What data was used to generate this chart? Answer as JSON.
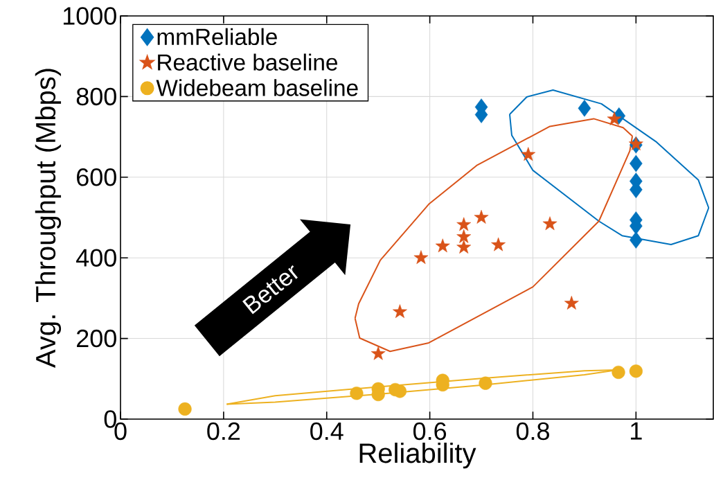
{
  "chart_data": {
    "type": "scatter",
    "xlabel": "Reliability",
    "ylabel": "Avg. Throughput (Mbps)",
    "xlim": [
      0,
      1.15
    ],
    "ylim": [
      0,
      1000
    ],
    "xticks": [
      0,
      0.2,
      0.4,
      0.6,
      0.8,
      1
    ],
    "yticks": [
      0,
      200,
      400,
      600,
      800,
      1000
    ],
    "grid": true,
    "legend": "top left",
    "annotations": [
      "Better"
    ],
    "series": [
      {
        "name": "mmReliable",
        "color": "#0072bd",
        "marker": "diamond",
        "x": [
          0.7,
          0.7,
          0.9,
          0.967,
          1,
          1,
          1,
          1,
          1,
          1,
          1
        ],
        "values": [
          774,
          755,
          771,
          752,
          680,
          634,
          590,
          569,
          494,
          479,
          444
        ]
      },
      {
        "name": "Reactive baseline",
        "color": "#d95319",
        "marker": "star",
        "x": [
          0.958,
          1,
          0.791,
          0.7,
          0.666,
          0.666,
          0.666,
          0.625,
          0.733,
          0.833,
          0.583,
          0.542,
          0.875,
          0.5
        ],
        "values": [
          744,
          682,
          656,
          500,
          482,
          452,
          426,
          429,
          432,
          484,
          400,
          266,
          287,
          162
        ]
      },
      {
        "name": "Widebeam baseline",
        "color": "#edb120",
        "marker": "circle",
        "x": [
          0.125,
          0.458,
          0.5,
          0.5,
          0.533,
          0.542,
          0.625,
          0.625,
          0.708,
          0.966,
          1
        ],
        "values": [
          25,
          64,
          75,
          61,
          73,
          69,
          96,
          85,
          89,
          116,
          119
        ]
      },
      {
        "type": "line",
        "color": "#0072bd",
        "marker": "none",
        "x": [
          0.755,
          0.788,
          0.839,
          0.933,
          1.04,
          1.121,
          1.141
        ],
        "values": [
          756,
          799,
          816,
          782,
          687,
          593,
          524
        ]
      },
      {
        "type": "line",
        "color": "#0072bd",
        "marker": "none",
        "x": [
          0.755,
          0.759,
          0.8,
          0.928,
          0.973,
          1.068,
          1.121,
          1.141
        ],
        "values": [
          756,
          704,
          617,
          491,
          455,
          433,
          455,
          524
        ]
      },
      {
        "type": "line",
        "color": "#d95319",
        "marker": "none",
        "x": [
          0.455,
          0.462,
          0.504,
          0.598,
          0.692,
          0.833,
          0.918,
          0.975,
          0.993
        ],
        "values": [
          250,
          286,
          394,
          533,
          630,
          726,
          745,
          723,
          702
        ]
      },
      {
        "type": "line",
        "color": "#d95319",
        "marker": "none",
        "x": [
          0.455,
          0.464,
          0.523,
          0.598,
          0.8,
          0.928,
          0.988,
          0.993
        ],
        "values": [
          250,
          201,
          168,
          189,
          328,
          491,
          665,
          702
        ]
      },
      {
        "type": "line",
        "color": "#edb120",
        "marker": "none",
        "x": [
          0.206,
          0.3,
          0.5,
          0.7,
          0.9,
          0.964
        ],
        "values": [
          37,
          58,
          80,
          101,
          120,
          122
        ]
      },
      {
        "type": "line",
        "color": "#edb120",
        "marker": "none",
        "x": [
          0.206,
          0.3,
          0.5,
          0.7,
          0.9,
          0.964
        ],
        "values": [
          37,
          42,
          62,
          84,
          110,
          122
        ]
      }
    ]
  }
}
